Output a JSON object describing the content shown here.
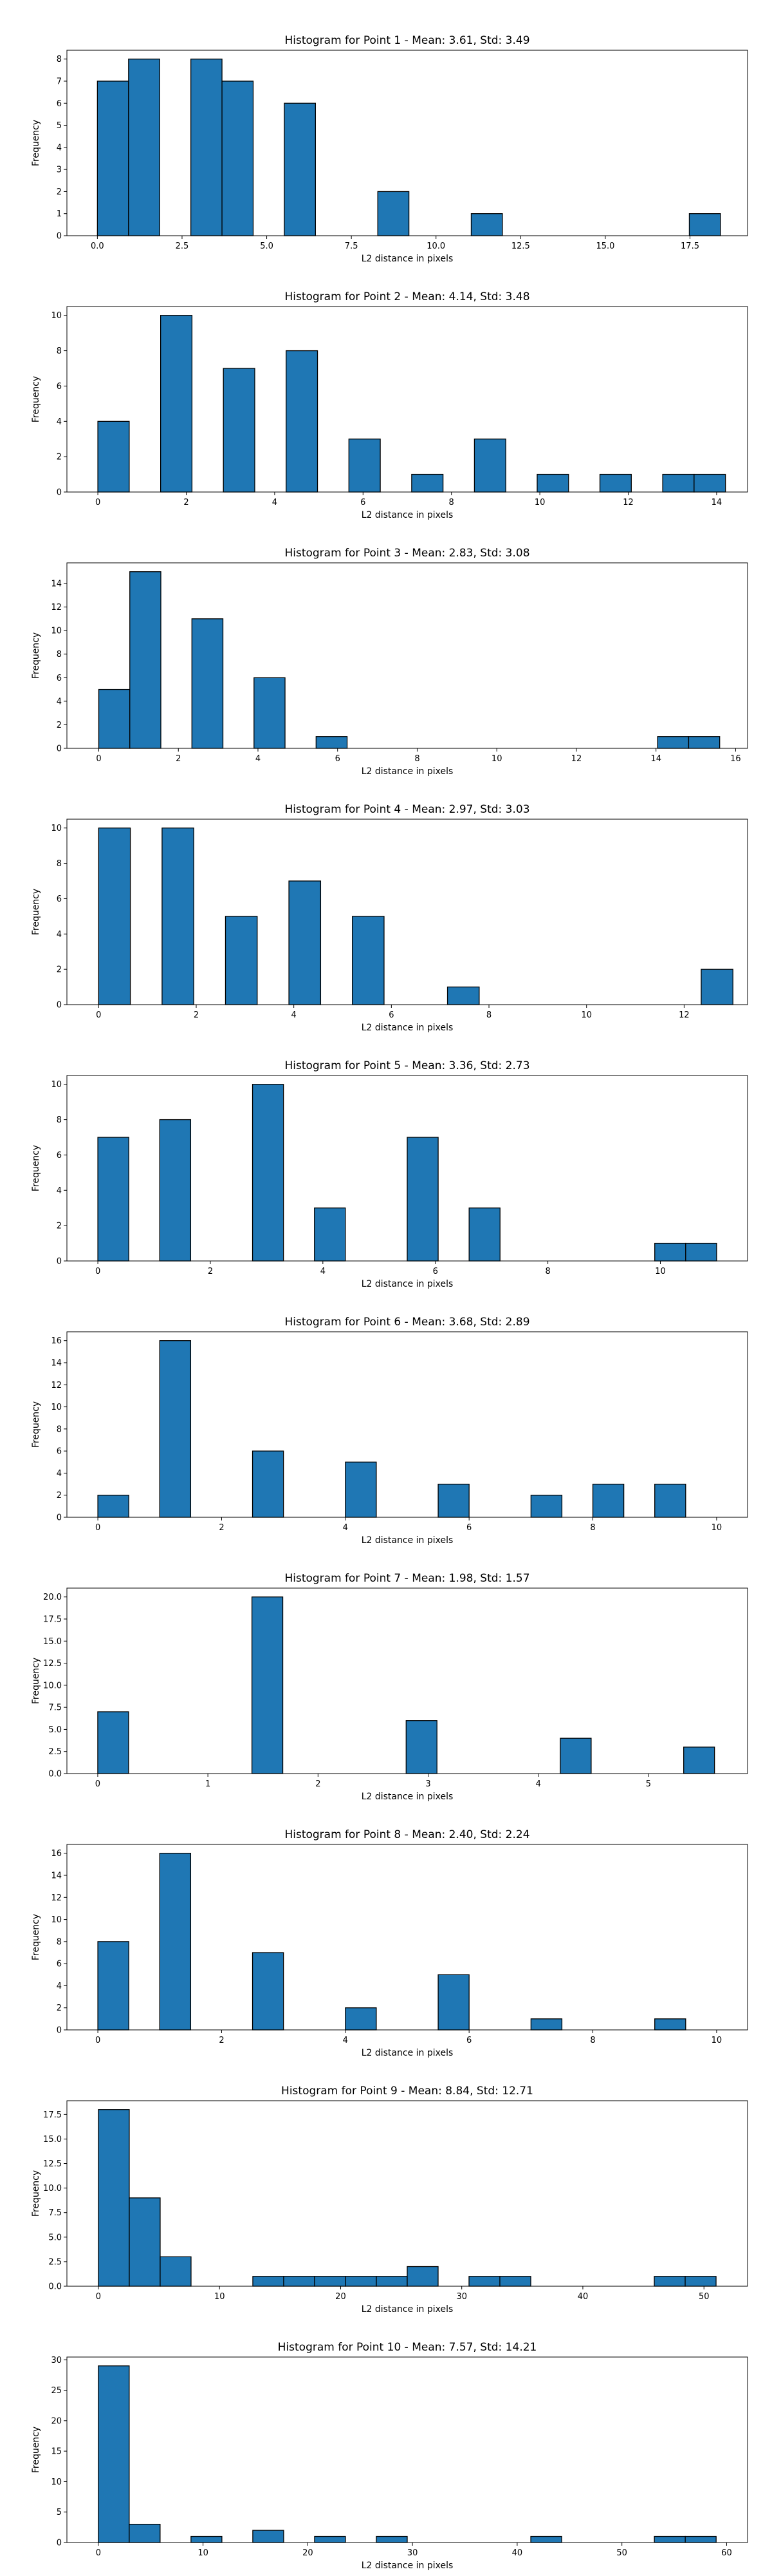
{
  "figure": {
    "bar_color": "#1f77b4",
    "bar_edge_color": "#000000"
  },
  "chart_data": [
    {
      "type": "bar",
      "title": "Histogram for Point 1 - Mean: 3.61, Std: 3.49",
      "xlabel": "L2 distance in pixels",
      "ylabel": "Frequency",
      "xlim": [
        -0.9,
        19.2
      ],
      "ylim": [
        0,
        8.4
      ],
      "x_ticks": [
        0,
        2.5,
        5,
        7.5,
        10,
        12.5,
        15,
        17.5
      ],
      "x_tick_labels": [
        "0.0",
        "2.5",
        "5.0",
        "7.5",
        "10.0",
        "12.5",
        "15.0",
        "17.5"
      ],
      "y_ticks": [
        0,
        1,
        2,
        3,
        4,
        5,
        6,
        7,
        8
      ],
      "y_tick_labels": [
        "0",
        "1",
        "2",
        "3",
        "4",
        "5",
        "6",
        "7",
        "8"
      ],
      "bin_edges": [
        0,
        0.92,
        1.84,
        2.76,
        3.68,
        4.6,
        5.52,
        6.44,
        7.36,
        8.28,
        9.2,
        10.12,
        11.04,
        11.96,
        12.88,
        13.8,
        14.72,
        15.64,
        16.56,
        17.48,
        18.4
      ],
      "values": [
        7,
        8,
        0,
        8,
        7,
        0,
        6,
        0,
        0,
        2,
        0,
        0,
        1,
        0,
        0,
        0,
        0,
        0,
        0,
        1
      ]
    },
    {
      "type": "bar",
      "title": "Histogram for Point 2 - Mean: 4.14, Std: 3.48",
      "xlabel": "L2 distance in pixels",
      "ylabel": "Frequency",
      "xlim": [
        -0.7,
        14.7
      ],
      "ylim": [
        0,
        10.5
      ],
      "x_ticks": [
        0,
        2,
        4,
        6,
        8,
        10,
        12,
        14
      ],
      "x_tick_labels": [
        "0",
        "2",
        "4",
        "6",
        "8",
        "10",
        "12",
        "14"
      ],
      "y_ticks": [
        0,
        2,
        4,
        6,
        8,
        10
      ],
      "y_tick_labels": [
        "0",
        "2",
        "4",
        "6",
        "8",
        "10"
      ],
      "bin_edges": [
        0,
        0.71,
        1.42,
        2.13,
        2.84,
        3.55,
        4.26,
        4.97,
        5.68,
        6.39,
        7.1,
        7.81,
        8.52,
        9.23,
        9.94,
        10.65,
        11.36,
        12.07,
        12.78,
        13.49,
        14.2
      ],
      "values": [
        4,
        0,
        10,
        0,
        7,
        0,
        8,
        0,
        3,
        0,
        1,
        0,
        3,
        0,
        1,
        0,
        1,
        0,
        1,
        1
      ]
    },
    {
      "type": "bar",
      "title": "Histogram for Point 3 - Mean: 2.83, Std: 3.08",
      "xlabel": "L2 distance in pixels",
      "ylabel": "Frequency",
      "xlim": [
        -0.8,
        16.3
      ],
      "ylim": [
        0,
        15.75
      ],
      "x_ticks": [
        0,
        2,
        4,
        6,
        8,
        10,
        12,
        14,
        16
      ],
      "x_tick_labels": [
        "0",
        "2",
        "4",
        "6",
        "8",
        "10",
        "12",
        "14",
        "16"
      ],
      "y_ticks": [
        0,
        2,
        4,
        6,
        8,
        10,
        12,
        14
      ],
      "y_tick_labels": [
        "0",
        "2",
        "4",
        "6",
        "8",
        "10",
        "12",
        "14"
      ],
      "bin_edges": [
        0,
        0.78,
        1.56,
        2.34,
        3.12,
        3.9,
        4.68,
        5.46,
        6.24,
        7.02,
        7.8,
        8.58,
        9.36,
        10.14,
        10.92,
        11.7,
        12.48,
        13.26,
        14.04,
        14.82,
        15.6
      ],
      "values": [
        5,
        15,
        0,
        11,
        0,
        6,
        0,
        1,
        0,
        0,
        0,
        0,
        0,
        0,
        0,
        0,
        0,
        0,
        1,
        1
      ]
    },
    {
      "type": "bar",
      "title": "Histogram for Point 4 - Mean: 2.97, Std: 3.03",
      "xlabel": "L2 distance in pixels",
      "ylabel": "Frequency",
      "xlim": [
        -0.65,
        13.3
      ],
      "ylim": [
        0,
        10.5
      ],
      "x_ticks": [
        0,
        2,
        4,
        6,
        8,
        10,
        12
      ],
      "x_tick_labels": [
        "0",
        "2",
        "4",
        "6",
        "8",
        "10",
        "12"
      ],
      "y_ticks": [
        0,
        2,
        4,
        6,
        8,
        10
      ],
      "y_tick_labels": [
        "0",
        "2",
        "4",
        "6",
        "8",
        "10"
      ],
      "bin_edges": [
        0,
        0.65,
        1.3,
        1.95,
        2.6,
        3.25,
        3.9,
        4.55,
        5.2,
        5.85,
        6.5,
        7.15,
        7.8,
        8.45,
        9.1,
        9.75,
        10.4,
        11.05,
        11.7,
        12.35,
        13.0
      ],
      "values": [
        10,
        0,
        10,
        0,
        5,
        0,
        7,
        0,
        5,
        0,
        0,
        1,
        0,
        0,
        0,
        0,
        0,
        0,
        0,
        2
      ]
    },
    {
      "type": "bar",
      "title": "Histogram for Point 5 - Mean: 3.36, Std: 2.73",
      "xlabel": "L2 distance in pixels",
      "ylabel": "Frequency",
      "xlim": [
        -0.55,
        11.55
      ],
      "ylim": [
        0,
        10.5
      ],
      "x_ticks": [
        0,
        2,
        4,
        6,
        8,
        10
      ],
      "x_tick_labels": [
        "0",
        "2",
        "4",
        "6",
        "8",
        "10"
      ],
      "y_ticks": [
        0,
        2,
        4,
        6,
        8,
        10
      ],
      "y_tick_labels": [
        "0",
        "2",
        "4",
        "6",
        "8",
        "10"
      ],
      "bin_edges": [
        0,
        0.55,
        1.1,
        1.65,
        2.2,
        2.75,
        3.3,
        3.85,
        4.4,
        4.95,
        5.5,
        6.05,
        6.6,
        7.15,
        7.7,
        8.25,
        8.8,
        9.35,
        9.9,
        10.45,
        11.0
      ],
      "values": [
        7,
        0,
        8,
        0,
        0,
        10,
        0,
        3,
        0,
        0,
        7,
        0,
        3,
        0,
        0,
        0,
        0,
        0,
        1,
        1
      ]
    },
    {
      "type": "bar",
      "title": "Histogram for Point 6 - Mean: 3.68, Std: 2.89",
      "xlabel": "L2 distance in pixels",
      "ylabel": "Frequency",
      "xlim": [
        -0.5,
        10.5
      ],
      "ylim": [
        0,
        16.8
      ],
      "x_ticks": [
        0,
        2,
        4,
        6,
        8,
        10
      ],
      "x_tick_labels": [
        "0",
        "2",
        "4",
        "6",
        "8",
        "10"
      ],
      "y_ticks": [
        0,
        2,
        4,
        6,
        8,
        10,
        12,
        14,
        16
      ],
      "y_tick_labels": [
        "0",
        "2",
        "4",
        "6",
        "8",
        "10",
        "12",
        "14",
        "16"
      ],
      "bin_edges": [
        0,
        0.5,
        1.0,
        1.5,
        2.0,
        2.5,
        3.0,
        3.5,
        4.0,
        4.5,
        5.0,
        5.5,
        6.0,
        6.5,
        7.0,
        7.5,
        8.0,
        8.5,
        9.0,
        9.5,
        10.0
      ],
      "values": [
        2,
        0,
        16,
        0,
        0,
        6,
        0,
        0,
        5,
        0,
        0,
        3,
        0,
        0,
        2,
        0,
        3,
        0,
        3,
        0
      ]
    },
    {
      "type": "bar",
      "title": "Histogram for Point 7 - Mean: 1.98, Std: 1.57",
      "xlabel": "L2 distance in pixels",
      "ylabel": "Frequency",
      "xlim": [
        -0.28,
        5.9
      ],
      "ylim": [
        0,
        21
      ],
      "x_ticks": [
        0,
        1,
        2,
        3,
        4,
        5
      ],
      "x_tick_labels": [
        "0",
        "1",
        "2",
        "3",
        "4",
        "5"
      ],
      "y_ticks": [
        0,
        2.5,
        5,
        7.5,
        10,
        12.5,
        15,
        17.5,
        20
      ],
      "y_tick_labels": [
        "0.0",
        "2.5",
        "5.0",
        "7.5",
        "10.0",
        "12.5",
        "15.0",
        "17.5",
        "20.0"
      ],
      "bin_edges": [
        0,
        0.28,
        0.56,
        0.84,
        1.12,
        1.4,
        1.68,
        1.96,
        2.24,
        2.52,
        2.8,
        3.08,
        3.36,
        3.64,
        3.92,
        4.2,
        4.48,
        4.76,
        5.04,
        5.32,
        5.6
      ],
      "values": [
        7,
        0,
        0,
        0,
        0,
        20,
        0,
        0,
        0,
        0,
        6,
        0,
        0,
        0,
        0,
        4,
        0,
        0,
        0,
        3
      ]
    },
    {
      "type": "bar",
      "title": "Histogram for Point 8 - Mean: 2.40, Std: 2.24",
      "xlabel": "L2 distance in pixels",
      "ylabel": "Frequency",
      "xlim": [
        -0.5,
        10.5
      ],
      "ylim": [
        0,
        16.8
      ],
      "x_ticks": [
        0,
        2,
        4,
        6,
        8,
        10
      ],
      "x_tick_labels": [
        "0",
        "2",
        "4",
        "6",
        "8",
        "10"
      ],
      "y_ticks": [
        0,
        2,
        4,
        6,
        8,
        10,
        12,
        14,
        16
      ],
      "y_tick_labels": [
        "0",
        "2",
        "4",
        "6",
        "8",
        "10",
        "12",
        "14",
        "16"
      ],
      "bin_edges": [
        0,
        0.5,
        1.0,
        1.5,
        2.0,
        2.5,
        3.0,
        3.5,
        4.0,
        4.5,
        5.0,
        5.5,
        6.0,
        6.5,
        7.0,
        7.5,
        8.0,
        8.5,
        9.0,
        9.5,
        10.0
      ],
      "values": [
        8,
        0,
        16,
        0,
        0,
        7,
        0,
        0,
        2,
        0,
        0,
        5,
        0,
        0,
        1,
        0,
        0,
        0,
        1,
        0
      ]
    },
    {
      "type": "bar",
      "title": "Histogram for Point 9 - Mean: 8.84, Std: 12.71",
      "xlabel": "L2 distance in pixels",
      "ylabel": "Frequency",
      "xlim": [
        -2.6,
        53.6
      ],
      "ylim": [
        0,
        18.9
      ],
      "x_ticks": [
        0,
        10,
        20,
        30,
        40,
        50
      ],
      "x_tick_labels": [
        "0",
        "10",
        "20",
        "30",
        "40",
        "50"
      ],
      "y_ticks": [
        0,
        2.5,
        5,
        7.5,
        10,
        12.5,
        15,
        17.5
      ],
      "y_tick_labels": [
        "0.0",
        "2.5",
        "5.0",
        "7.5",
        "10.0",
        "12.5",
        "15.0",
        "17.5"
      ],
      "bin_edges": [
        0,
        2.55,
        5.1,
        7.65,
        10.2,
        12.75,
        15.3,
        17.85,
        20.4,
        22.95,
        25.5,
        28.05,
        30.6,
        33.15,
        35.7,
        38.25,
        40.8,
        43.35,
        45.9,
        48.45,
        51.0
      ],
      "values": [
        18,
        9,
        3,
        0,
        0,
        1,
        1,
        1,
        1,
        1,
        2,
        0,
        1,
        1,
        0,
        0,
        0,
        0,
        1,
        1
      ]
    },
    {
      "type": "bar",
      "title": "Histogram for Point 10 - Mean: 7.57, Std: 14.21",
      "xlabel": "L2 distance in pixels",
      "ylabel": "Frequency",
      "xlim": [
        -3.0,
        62.0
      ],
      "ylim": [
        0,
        30.45
      ],
      "x_ticks": [
        0,
        10,
        20,
        30,
        40,
        50,
        60
      ],
      "x_tick_labels": [
        "0",
        "10",
        "20",
        "30",
        "40",
        "50",
        "60"
      ],
      "y_ticks": [
        0,
        5,
        10,
        15,
        20,
        25,
        30
      ],
      "y_tick_labels": [
        "0",
        "5",
        "10",
        "15",
        "20",
        "25",
        "30"
      ],
      "bin_edges": [
        0,
        2.95,
        5.9,
        8.85,
        11.8,
        14.75,
        17.7,
        20.65,
        23.6,
        26.55,
        29.5,
        32.45,
        35.4,
        38.35,
        41.3,
        44.25,
        47.2,
        50.15,
        53.1,
        56.05,
        59.0
      ],
      "values": [
        29,
        3,
        0,
        1,
        0,
        2,
        0,
        1,
        0,
        1,
        0,
        0,
        0,
        0,
        1,
        0,
        0,
        0,
        1,
        1
      ]
    }
  ]
}
